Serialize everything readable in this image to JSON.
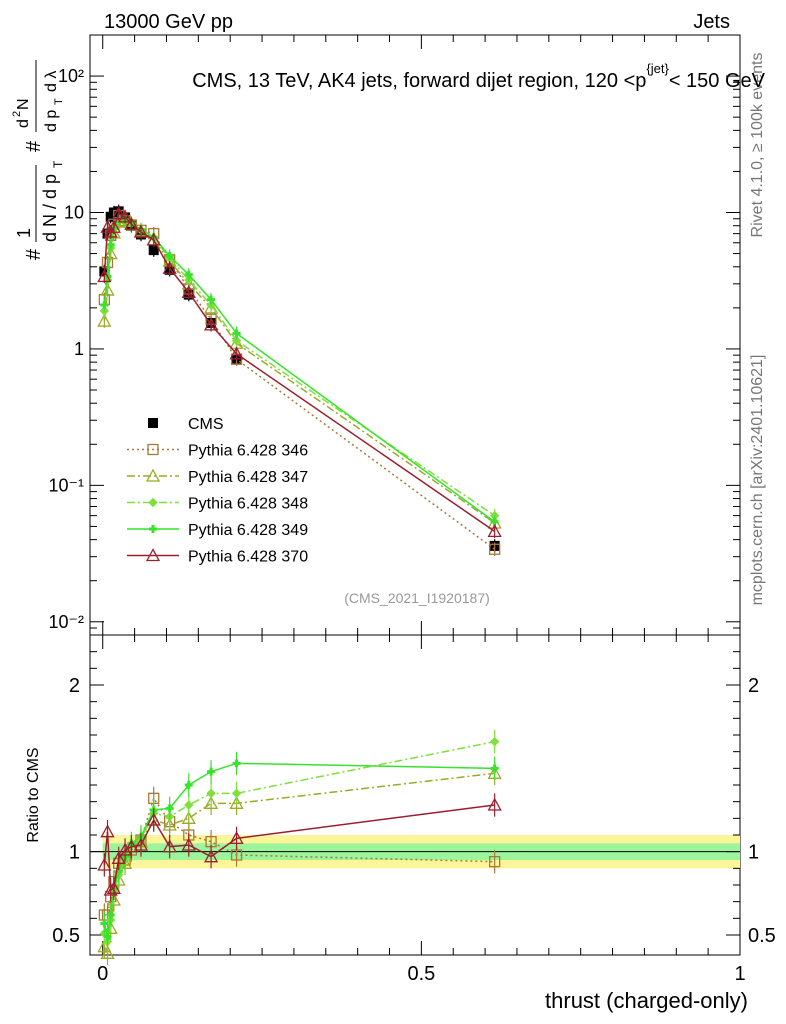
{
  "header": {
    "energy_label": "13000 GeV pp",
    "category_label": "Jets"
  },
  "side_text": {
    "rivet": "Rivet 4.1.0, ≥ 100k events",
    "source": "mcplots.cern.ch [arXiv:2401.10621]"
  },
  "chart_data": [
    {
      "type": "line",
      "panel": "main",
      "title": "CMS, 13 TeV, AK4 jets, forward dijet region, 120 <p_T^{jet}< 150 GeV",
      "ylabel": "1/(dN/dp_T) d²N/(dp_T dλ)",
      "yscale": "log",
      "ylim": [
        0.008,
        200
      ],
      "xlim": [
        -0.02,
        1.0
      ],
      "y_tick_labels": [
        "10⁻²",
        "10⁻¹",
        "1",
        "10",
        "10²"
      ],
      "watermark": "(CMS_2021_I1920187)",
      "legend_position": "middle-left",
      "x": [
        0.0025,
        0.0075,
        0.0125,
        0.0175,
        0.025,
        0.035,
        0.045,
        0.06,
        0.08,
        0.105,
        0.135,
        0.17,
        0.21,
        0.615
      ],
      "series": [
        {
          "name": "CMS",
          "color": "#000000",
          "marker": "square-filled",
          "style": "none",
          "values": [
            3.7,
            7.0,
            9.3,
            10.0,
            10.2,
            9.2,
            8.0,
            6.9,
            5.3,
            3.8,
            2.5,
            1.55,
            0.85,
            0.036
          ]
        },
        {
          "name": "Pythia 6.428 346",
          "color": "#a87938",
          "marker": "square-open",
          "style": "dotted",
          "values": [
            2.3,
            4.3,
            6.8,
            8.2,
            9.5,
            8.7,
            8.1,
            7.4,
            7.0,
            4.5,
            2.75,
            1.65,
            0.84,
            0.034
          ]
        },
        {
          "name": "Pythia 6.428 347",
          "color": "#9aab25",
          "marker": "triangle-open",
          "style": "dashdot",
          "values": [
            1.6,
            2.7,
            5.0,
            7.1,
            8.5,
            8.6,
            8.2,
            7.3,
            6.3,
            4.4,
            3.0,
            2.0,
            1.1,
            0.053
          ]
        },
        {
          "name": "Pythia 6.428 348",
          "color": "#7ee03a",
          "marker": "diamond",
          "style": "dashdot",
          "values": [
            1.9,
            3.2,
            5.5,
            7.6,
            8.8,
            8.7,
            8.3,
            7.4,
            6.5,
            4.6,
            3.2,
            2.1,
            1.15,
            0.06
          ]
        },
        {
          "name": "Pythia 6.428 349",
          "color": "#37e32b",
          "marker": "cross",
          "style": "solid",
          "values": [
            2.1,
            3.4,
            5.8,
            7.8,
            9.0,
            8.9,
            8.4,
            7.5,
            6.6,
            4.8,
            3.5,
            2.3,
            1.3,
            0.054
          ]
        },
        {
          "name": "Pythia 6.428 370",
          "color": "#9b1f2e",
          "marker": "triangle-open",
          "style": "solid",
          "values": [
            3.4,
            7.8,
            7.2,
            7.8,
            9.8,
            9.3,
            8.2,
            7.2,
            6.3,
            3.9,
            2.6,
            1.5,
            0.92,
            0.046
          ]
        }
      ]
    },
    {
      "type": "line",
      "panel": "ratio",
      "xlabel": "thrust (charged-only)",
      "ylabel": "Ratio to CMS",
      "ylim": [
        0.38,
        2.3
      ],
      "xlim": [
        -0.02,
        1.0
      ],
      "y_tick_labels": [
        "0.5",
        "1",
        "2"
      ],
      "x_tick_labels": [
        "0",
        "0.5",
        "1"
      ],
      "band_inner": [
        0.95,
        1.05
      ],
      "band_outer": [
        0.9,
        1.1
      ],
      "x": [
        0.0025,
        0.0075,
        0.0125,
        0.0175,
        0.025,
        0.035,
        0.045,
        0.06,
        0.08,
        0.105,
        0.135,
        0.17,
        0.21,
        0.615
      ],
      "series": [
        {
          "name": "Pythia 6.428 346",
          "color": "#a87938",
          "values": [
            0.62,
            0.62,
            0.73,
            0.82,
            0.93,
            0.95,
            1.01,
            1.07,
            1.32,
            1.18,
            1.1,
            1.06,
            0.98,
            0.94
          ]
        },
        {
          "name": "Pythia 6.428 347",
          "color": "#9aab25",
          "values": [
            0.43,
            0.39,
            0.54,
            0.71,
            0.83,
            0.93,
            1.03,
            1.06,
            1.19,
            1.16,
            1.2,
            1.29,
            1.29,
            1.47
          ]
        },
        {
          "name": "Pythia 6.428 348",
          "color": "#7ee03a",
          "values": [
            0.51,
            0.46,
            0.59,
            0.76,
            0.86,
            0.95,
            1.04,
            1.07,
            1.23,
            1.21,
            1.28,
            1.35,
            1.35,
            1.66
          ]
        },
        {
          "name": "Pythia 6.428 349",
          "color": "#37e32b",
          "values": [
            0.57,
            0.49,
            0.62,
            0.78,
            0.88,
            0.97,
            1.05,
            1.09,
            1.25,
            1.26,
            1.4,
            1.48,
            1.53,
            1.5
          ]
        },
        {
          "name": "Pythia 6.428 370",
          "color": "#9b1f2e",
          "values": [
            0.92,
            1.12,
            0.77,
            0.78,
            0.96,
            1.01,
            1.03,
            1.04,
            1.19,
            1.03,
            1.04,
            0.97,
            1.08,
            1.28
          ]
        }
      ]
    }
  ]
}
